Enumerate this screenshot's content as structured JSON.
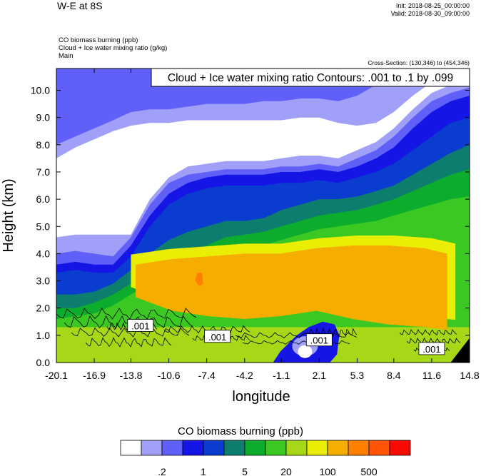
{
  "header": {
    "title": "W-E at 8S",
    "init": "Init: 2018-08-25_00:00:00",
    "valid": "Valid: 2018-08-30_09:00:00",
    "fields": [
      "CO biomass burning   (ppb)",
      "Cloud + Ice water mixing ratio    (g/kg)",
      "Main"
    ],
    "cross_section": "Cross-Section: (130,346) to (454,346)"
  },
  "chart_data": {
    "type": "heatmap",
    "title": "Cloud + Ice water mixing ratio Contours: .001 to .1 by .099",
    "xlabel": "longitude",
    "ylabel": "Height (km)",
    "xlim": [
      -20.1,
      14.8
    ],
    "ylim": [
      0.0,
      10.8
    ],
    "x_ticks": [
      "-20.1",
      "-16.9",
      "-13.8",
      "-10.6",
      "-7.4",
      "-4.2",
      "-1.1",
      "2.1",
      "5.3",
      "8.4",
      "11.6",
      "14.8"
    ],
    "y_ticks": [
      {
        "value": 0.0,
        "label": "0.0"
      },
      {
        "value": 1.0,
        "label": "1.0"
      },
      {
        "value": 2.0,
        "label": "2.0"
      },
      {
        "value": 3.0,
        "label": "3.0"
      },
      {
        "value": 4.0,
        "label": "4.0"
      },
      {
        "value": 5.0,
        "label": "5.0"
      },
      {
        "value": 6.0,
        "label": "6.0"
      },
      {
        "value": 7.0,
        "label": "7.0"
      },
      {
        "value": 8.0,
        "label": "8.0"
      },
      {
        "value": 9.0,
        "label": "9.0"
      },
      {
        "value": 10.0,
        "label": "10.0"
      }
    ],
    "filled_levels": [
      {
        "x": [
          -20.1,
          -18.5,
          -16.9,
          -15.3,
          -13.8,
          -12.2,
          -10.6,
          -9.0,
          -7.4,
          -5.8,
          -4.2,
          -2.6,
          -1.1,
          0.5,
          2.1,
          3.7,
          5.3,
          6.9,
          8.4,
          10.0,
          11.6,
          13.2,
          14.8
        ],
        "top": [
          8.0,
          8.3,
          8.6,
          8.9,
          9.2,
          9.3,
          9.3,
          9.4,
          9.5,
          9.5,
          9.5,
          9.6,
          9.6,
          9.7,
          9.7,
          9.6,
          9.8,
          10.2,
          10.4,
          10.6,
          10.8,
          10.8,
          10.8
        ]
      },
      {
        "x": [
          -20.1,
          -18.5,
          -16.9,
          -15.3,
          -13.8,
          -12.2,
          -10.6,
          -9.0,
          -7.4,
          -5.8,
          -4.2,
          -2.6,
          -1.1,
          0.5,
          2.1,
          3.7,
          5.3,
          6.9,
          8.4,
          10.0,
          11.6,
          13.2,
          14.8
        ],
        "top": [
          7.5,
          7.9,
          8.2,
          8.5,
          8.7,
          8.8,
          8.8,
          8.9,
          8.9,
          8.9,
          8.9,
          8.9,
          8.9,
          9.0,
          9.0,
          8.8,
          8.7,
          8.8,
          9.2,
          9.8,
          10.3,
          10.5,
          10.6
        ]
      },
      {
        "x": [
          -20.1,
          -18.5,
          -16.9,
          -15.3,
          -13.8,
          -12.2,
          -10.6,
          -9.0,
          -7.4,
          -5.8,
          -4.2,
          -2.6,
          -1.1,
          0.5,
          2.1,
          3.7,
          5.3,
          6.9,
          8.4,
          10.0,
          11.6,
          13.2,
          14.8
        ],
        "top": [
          4.6,
          4.7,
          4.7,
          4.7,
          4.7,
          6.0,
          6.8,
          7.2,
          7.3,
          7.4,
          7.4,
          7.4,
          7.5,
          7.6,
          7.6,
          7.5,
          7.8,
          8.1,
          8.6,
          9.3,
          9.9,
          10.2,
          10.4
        ]
      },
      {
        "x": [
          -20.1,
          -18.5,
          -16.9,
          -15.3,
          -13.8,
          -12.2,
          -10.6,
          -9.0,
          -7.4,
          -5.8,
          -4.2,
          -2.6,
          -1.1,
          0.5,
          2.1,
          3.7,
          5.3,
          6.9,
          8.4,
          10.0,
          11.6,
          13.2,
          14.8
        ],
        "top": [
          4.0,
          4.1,
          4.0,
          3.9,
          4.6,
          5.8,
          6.6,
          6.9,
          7.0,
          7.1,
          7.1,
          7.1,
          7.2,
          7.2,
          7.3,
          7.2,
          7.5,
          7.8,
          8.3,
          9.0,
          9.6,
          9.9,
          10.1
        ]
      },
      {
        "x": [
          -20.1,
          -18.5,
          -16.9,
          -15.3,
          -13.8,
          -12.2,
          -10.6,
          -9.0,
          -7.4,
          -5.8,
          -4.2,
          -2.6,
          -1.1,
          0.5,
          2.1,
          3.7,
          5.3,
          6.9,
          8.4,
          10.0,
          11.6,
          13.2,
          14.8
        ],
        "top": [
          3.6,
          3.7,
          3.6,
          3.6,
          4.3,
          5.4,
          6.2,
          6.6,
          6.8,
          6.9,
          6.9,
          6.9,
          7.0,
          7.0,
          7.1,
          7.0,
          7.2,
          7.5,
          7.9,
          8.6,
          9.2,
          9.6,
          9.8
        ]
      },
      {
        "x": [
          -20.1,
          -18.5,
          -16.9,
          -15.3,
          -13.8,
          -12.2,
          -10.6,
          -9.0,
          -7.4,
          -5.8,
          -4.2,
          -2.6,
          -1.1,
          0.5,
          2.1,
          3.7,
          5.3,
          6.9,
          8.4,
          10.0,
          11.6,
          13.2,
          14.8
        ],
        "top": [
          3.3,
          3.4,
          3.3,
          3.3,
          3.9,
          5.0,
          5.8,
          6.2,
          6.4,
          6.5,
          6.5,
          6.5,
          6.6,
          6.6,
          6.7,
          6.6,
          6.8,
          7.0,
          7.3,
          7.8,
          8.3,
          8.8,
          9.0
        ]
      },
      {
        "x": [
          -20.1,
          -18.5,
          -16.9,
          -15.3,
          -13.8,
          -12.2,
          -10.6,
          -9.0,
          -7.4,
          -5.8,
          -4.2,
          -2.6,
          -1.1,
          0.5,
          2.1,
          3.7,
          5.3,
          6.9,
          8.4,
          10.0,
          11.6,
          13.2,
          14.8
        ],
        "top": [
          2.5,
          2.5,
          2.6,
          2.9,
          3.4,
          4.0,
          4.5,
          4.8,
          5.0,
          5.2,
          5.2,
          5.3,
          5.6,
          5.8,
          6.0,
          6.0,
          6.1,
          6.3,
          6.5,
          6.9,
          7.3,
          7.7,
          8.0
        ]
      },
      {
        "x": [
          -20.1,
          -18.5,
          -16.9,
          -15.3,
          -13.8,
          -12.2,
          -10.6,
          -9.0,
          -7.4,
          -5.8,
          -4.2,
          -2.6,
          -1.1,
          0.5,
          2.1,
          3.7,
          5.3,
          6.9,
          8.4,
          10.0,
          11.6,
          13.2,
          14.8
        ],
        "top": [
          2.0,
          2.0,
          2.2,
          2.5,
          2.9,
          3.3,
          3.8,
          4.1,
          4.3,
          4.6,
          4.7,
          4.8,
          5.0,
          5.2,
          5.4,
          5.5,
          5.6,
          5.8,
          6.0,
          6.3,
          6.6,
          6.9,
          7.1
        ]
      },
      {
        "x": [
          -20.1,
          -18.5,
          -16.9,
          -15.3,
          -13.8,
          -12.2,
          -10.6,
          -9.0,
          -7.4,
          -5.8,
          -4.2,
          -2.6,
          -1.1,
          0.5,
          2.1,
          3.7,
          5.3,
          6.9,
          8.4,
          10.0,
          11.6,
          13.2,
          14.8
        ],
        "top": [
          1.6,
          1.7,
          1.8,
          2.1,
          2.5,
          2.9,
          3.3,
          3.6,
          3.8,
          4.0,
          4.2,
          4.3,
          4.5,
          4.7,
          4.9,
          5.0,
          5.1,
          5.2,
          5.4,
          5.6,
          5.8,
          6.0,
          6.1
        ]
      }
    ],
    "orange_zone": {
      "x": [
        -13.8,
        -10.6,
        -7.4,
        -4.2,
        -1.1,
        2.1,
        5.3,
        8.4,
        11.6,
        13.6,
        13.6,
        11.6,
        8.4,
        5.3,
        2.1,
        -1.1,
        -4.2,
        -7.4,
        -10.6,
        -13.8
      ],
      "y": [
        3.6,
        3.8,
        3.9,
        4.0,
        4.0,
        4.2,
        4.3,
        4.3,
        4.2,
        4.0,
        1.2,
        1.3,
        1.4,
        1.6,
        1.9,
        1.7,
        1.6,
        1.7,
        1.9,
        2.4
      ]
    },
    "red_spot": {
      "x": [
        -8.2,
        -7.8,
        -7.7,
        -8.0,
        -8.4
      ],
      "y": [
        3.3,
        3.3,
        2.9,
        2.8,
        3.0
      ]
    },
    "bottom_blue": {
      "x": [
        -1.8,
        -1.0,
        -0.2,
        0.6,
        1.4,
        2.2,
        3.0,
        3.6,
        3.8,
        3.4,
        2.4,
        1.2,
        0.2,
        -1.2,
        -1.8
      ],
      "y": [
        0.0,
        0.0,
        0.0,
        0.0,
        0.0,
        0.0,
        0.0,
        0.3,
        1.0,
        1.4,
        1.5,
        1.3,
        1.0,
        0.4,
        0.0
      ]
    },
    "contour_labels": [
      {
        "text": ".001",
        "x": -13.0,
        "y": 1.35
      },
      {
        "text": ".001",
        "x": -6.5,
        "y": 0.95
      },
      {
        "text": ".001",
        "x": 2.1,
        "y": 0.82
      },
      {
        "text": ".001",
        "x": 11.6,
        "y": 0.5
      }
    ],
    "colorbar": {
      "title": "CO biomass burning  (ppb)",
      "colors": [
        "#ffffff",
        "#a0a0f8",
        "#6060f8",
        "#1515e6",
        "#0a3ccf",
        "#0d7d6e",
        "#0cad2d",
        "#3cc823",
        "#a6d818",
        "#eaee04",
        "#f5ae00",
        "#ff8000",
        "#ff5505",
        "#fa0a00"
      ],
      "labels": [
        ".2",
        "1",
        "5",
        "20",
        "100",
        "500"
      ]
    }
  }
}
